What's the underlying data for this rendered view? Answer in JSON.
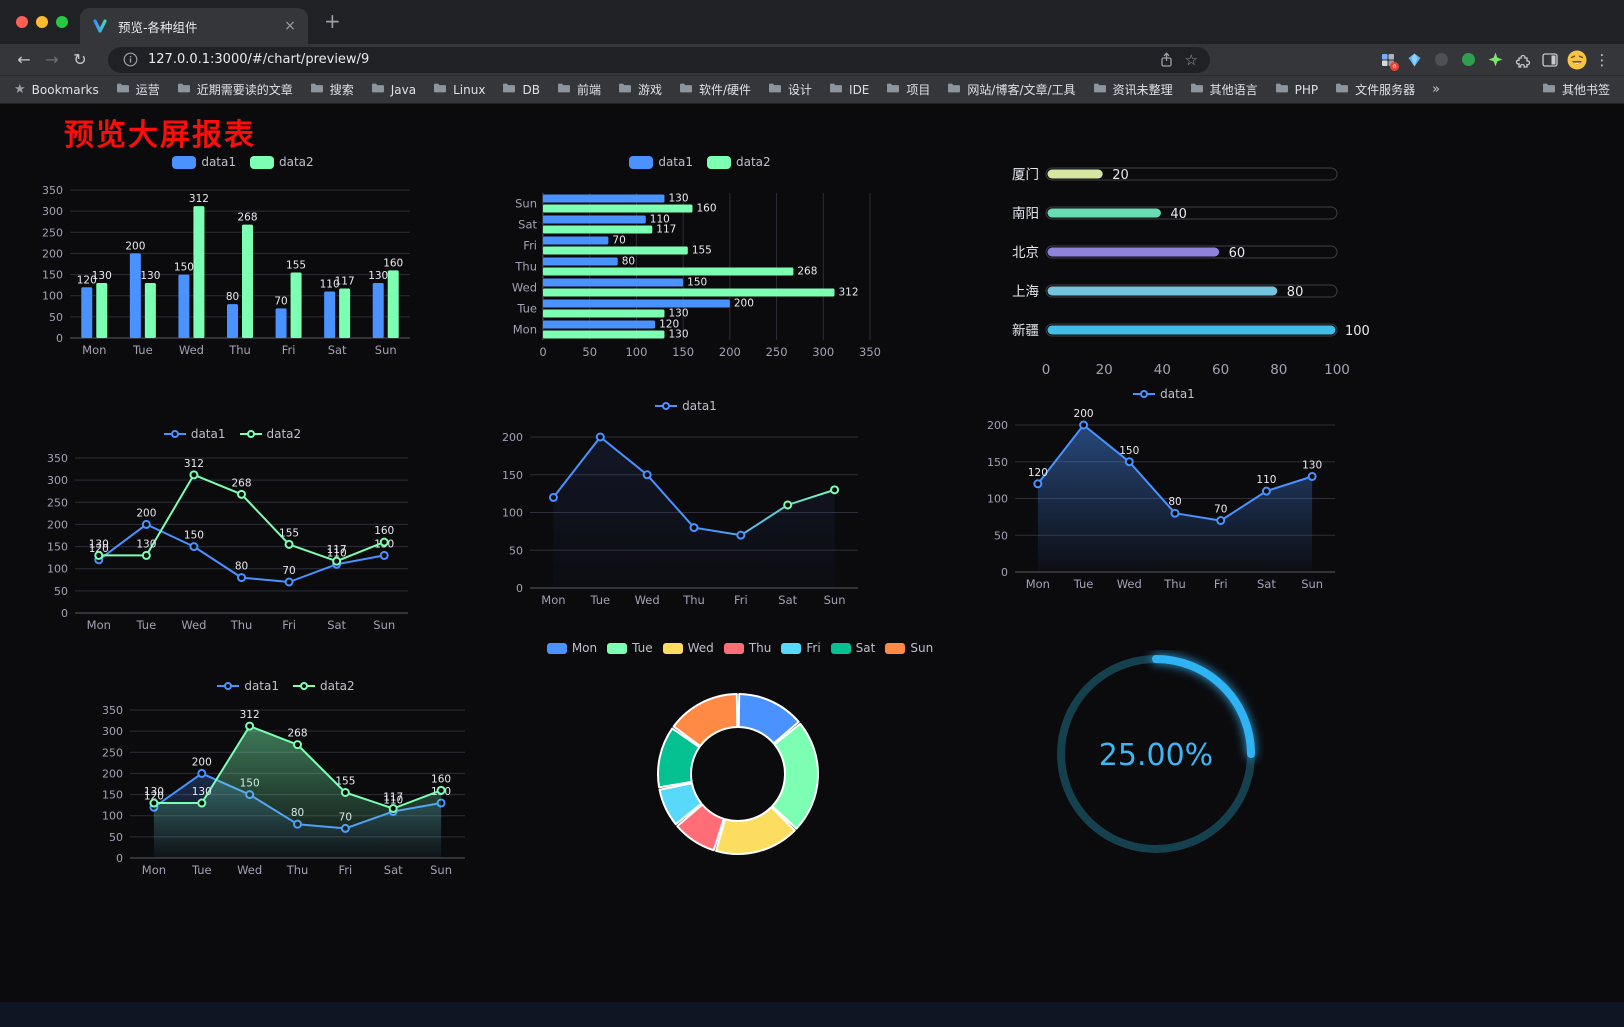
{
  "browser": {
    "tab": {
      "title": "预览-各种组件"
    },
    "url": "127.0.0.1:3000/#/chart/preview/9",
    "bookmarks_bar": {
      "lead": "Bookmarks",
      "folders": [
        "运营",
        "近期需要读的文章",
        "搜索",
        "Java",
        "Linux",
        "DB",
        "前端",
        "游戏",
        "软件/硬件",
        "设计",
        "IDE",
        "项目",
        "网站/博客/文章/工具",
        "资讯未整理",
        "其他语言",
        "PHP",
        "文件服务器"
      ],
      "overflow": "»",
      "other": "其他书签"
    }
  },
  "page": {
    "title": "预览大屏报表",
    "title_color": "#fb0d0c"
  },
  "chart_data": [
    {
      "id": "c1",
      "name": "grouped-bar-chart",
      "type": "bar",
      "categories": [
        "Mon",
        "Tue",
        "Wed",
        "Thu",
        "Fri",
        "Sat",
        "Sun"
      ],
      "series": [
        {
          "name": "data1",
          "color": "#4992ff",
          "values": [
            120,
            200,
            150,
            80,
            70,
            110,
            130
          ]
        },
        {
          "name": "data2",
          "color": "#7cffb2",
          "values": [
            130,
            130,
            312,
            268,
            155,
            117,
            160
          ]
        }
      ],
      "ylim": [
        0,
        350
      ],
      "ytick": 50,
      "value_labels": true,
      "legend_position": "top",
      "grid": true
    },
    {
      "id": "c2",
      "name": "horizontal-bar-chart",
      "type": "bar-horizontal",
      "categories": [
        "Mon",
        "Tue",
        "Wed",
        "Thu",
        "Fri",
        "Sat",
        "Sun"
      ],
      "series": [
        {
          "name": "data1",
          "color": "#4992ff",
          "values": [
            120,
            200,
            150,
            80,
            70,
            110,
            130
          ]
        },
        {
          "name": "data2",
          "color": "#7cffb2",
          "values": [
            130,
            130,
            312,
            268,
            155,
            117,
            160
          ]
        }
      ],
      "xlim": [
        0,
        350
      ],
      "xtick": 50,
      "value_labels": true,
      "legend_position": "top",
      "grid": true
    },
    {
      "id": "c3",
      "name": "progress-bar-chart",
      "type": "progress",
      "rows": [
        {
          "label": "厦门",
          "value": 20,
          "color": "#d5e6a2"
        },
        {
          "label": "南阳",
          "value": 40,
          "color": "#69dcb1"
        },
        {
          "label": "北京",
          "value": 60,
          "color": "#8d83dc"
        },
        {
          "label": "上海",
          "value": 80,
          "color": "#74c4de"
        },
        {
          "label": "新疆",
          "value": 100,
          "color": "#41bde6"
        }
      ],
      "xlim": [
        0,
        100
      ],
      "xticks": [
        0,
        20,
        40,
        60,
        80,
        100
      ]
    },
    {
      "id": "c4",
      "name": "two-series-line-chart",
      "type": "line",
      "categories": [
        "Mon",
        "Tue",
        "Wed",
        "Thu",
        "Fri",
        "Sat",
        "Sun"
      ],
      "series": [
        {
          "name": "data1",
          "color": "#4992ff",
          "values": [
            120,
            200,
            150,
            80,
            70,
            110,
            130
          ]
        },
        {
          "name": "data2",
          "color": "#7cffb2",
          "values": [
            130,
            130,
            312,
            268,
            155,
            117,
            160
          ]
        }
      ],
      "ylim": [
        0,
        350
      ],
      "ytick": 50,
      "value_labels": true,
      "legend_position": "top",
      "grid": true
    },
    {
      "id": "c5",
      "name": "gradient-line-chart",
      "type": "line",
      "categories": [
        "Mon",
        "Tue",
        "Wed",
        "Thu",
        "Fri",
        "Sat",
        "Sun"
      ],
      "series": [
        {
          "name": "data1",
          "color": "#4992ff",
          "gradient": [
            "#4992ff",
            "#7cffb2"
          ],
          "area": "#4c6bd4",
          "area_opacity": 0.12,
          "values": [
            120,
            200,
            150,
            80,
            70,
            110,
            130
          ]
        }
      ],
      "ylim": [
        0,
        200
      ],
      "ytick": 50,
      "value_labels": false,
      "legend_position": "top",
      "grid": true
    },
    {
      "id": "c6",
      "name": "area-line-chart",
      "type": "line",
      "categories": [
        "Mon",
        "Tue",
        "Wed",
        "Thu",
        "Fri",
        "Sat",
        "Sun"
      ],
      "series": [
        {
          "name": "data1",
          "color": "#4992ff",
          "area": "#4992ff",
          "area_opacity": 0.45,
          "values": [
            120,
            200,
            150,
            80,
            70,
            110,
            130
          ]
        }
      ],
      "ylim": [
        0,
        200
      ],
      "ytick": 50,
      "value_labels": true,
      "legend_position": "top",
      "grid": true
    },
    {
      "id": "c7",
      "name": "two-series-area-line-chart",
      "type": "line",
      "categories": [
        "Mon",
        "Tue",
        "Wed",
        "Thu",
        "Fri",
        "Sat",
        "Sun"
      ],
      "series": [
        {
          "name": "data1",
          "color": "#4992ff",
          "area": "#4992ff",
          "area_opacity": 0.25,
          "values": [
            120,
            200,
            150,
            80,
            70,
            110,
            130
          ]
        },
        {
          "name": "data2",
          "color": "#7cffb2",
          "area": "#7cffb2",
          "area_opacity": 0.45,
          "values": [
            130,
            130,
            312,
            268,
            155,
            117,
            160
          ]
        }
      ],
      "ylim": [
        0,
        350
      ],
      "ytick": 50,
      "value_labels": true,
      "legend_position": "top",
      "grid": true
    },
    {
      "id": "c8",
      "name": "donut-chart",
      "type": "pie",
      "legend_position": "top",
      "items": [
        {
          "name": "Mon",
          "value": 120,
          "color": "#4992ff"
        },
        {
          "name": "Tue",
          "value": 200,
          "color": "#7cffb2"
        },
        {
          "name": "Wed",
          "value": 150,
          "color": "#fddd60"
        },
        {
          "name": "Thu",
          "value": 80,
          "color": "#ff6e76"
        },
        {
          "name": "Fri",
          "value": 70,
          "color": "#58d9f9"
        },
        {
          "name": "Sat",
          "value": 110,
          "color": "#05c091"
        },
        {
          "name": "Sun",
          "value": 130,
          "color": "#ff8a45"
        }
      ]
    },
    {
      "id": "c9",
      "name": "gauge-chart",
      "type": "gauge",
      "value": 25,
      "label": "25.00%",
      "color": "#30b3f2",
      "track_color": "#15404e"
    }
  ]
}
